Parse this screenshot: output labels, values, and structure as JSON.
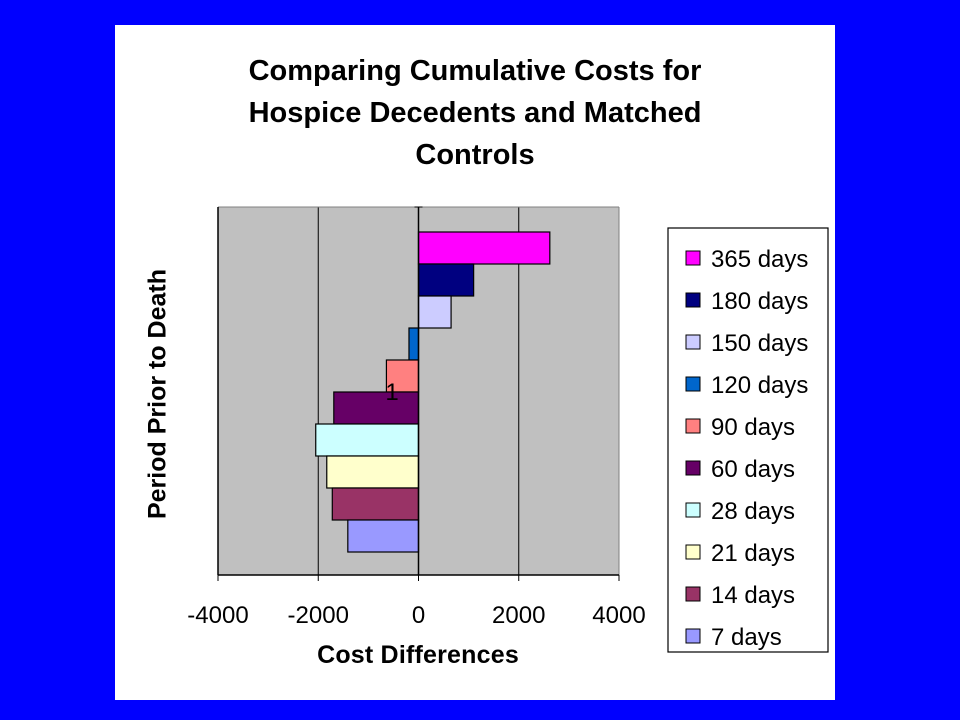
{
  "chart_data": {
    "type": "bar",
    "orientation": "horizontal",
    "title": [
      "Comparing Cumulative Costs for",
      "Hospice Decedents and Matched",
      "Controls"
    ],
    "xlabel": "Cost Differences",
    "ylabel": "Period Prior to Death",
    "category_label": "1",
    "xlim": [
      -4000,
      4000
    ],
    "xticks": [
      "-4000",
      "-2000",
      "0",
      "2000",
      "4000"
    ],
    "grid": true,
    "legend_position": "right",
    "series": [
      {
        "name": "365 days",
        "value": 2620,
        "color": "#ff00ff"
      },
      {
        "name": "180 days",
        "value": 1100,
        "color": "#000080"
      },
      {
        "name": "150 days",
        "value": 650,
        "color": "#ccccff"
      },
      {
        "name": "120 days",
        "value": -190,
        "color": "#0066cc"
      },
      {
        "name": "90 days",
        "value": -640,
        "color": "#ff8080"
      },
      {
        "name": "60 days",
        "value": -1690,
        "color": "#660066"
      },
      {
        "name": "28 days",
        "value": -2050,
        "color": "#ccffff"
      },
      {
        "name": "21 days",
        "value": -1830,
        "color": "#ffffcc"
      },
      {
        "name": "14 days",
        "value": -1720,
        "color": "#993366"
      },
      {
        "name": "7 days",
        "value": -1410,
        "color": "#9999ff"
      }
    ]
  },
  "colors": {
    "background": "#0000ff",
    "panel": "#ffffff",
    "plot_area": "#c0c0c0"
  }
}
